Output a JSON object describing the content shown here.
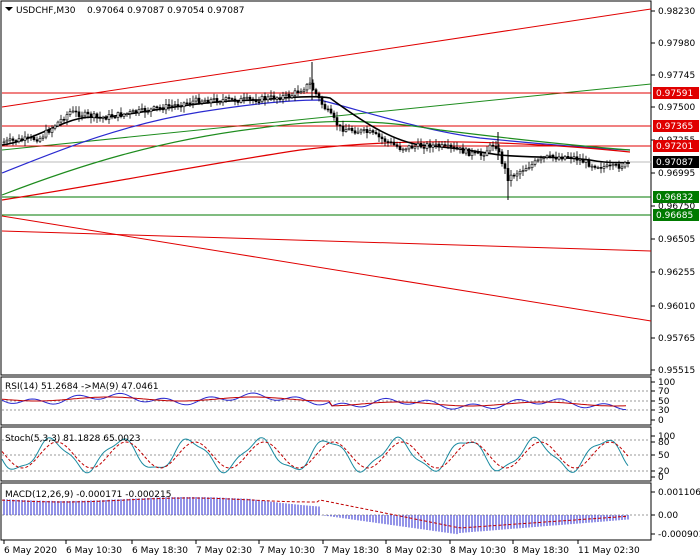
{
  "header": {
    "symbol_tf": "USDCHF,M30",
    "ohlc": "0.97064 0.97087 0.97054 0.97087"
  },
  "price_axis": {
    "ticks": [
      "0.98230",
      "0.97980",
      "0.97745",
      "0.97500",
      "0.97255",
      "0.96995",
      "0.96750",
      "0.96505",
      "0.96255",
      "0.96010",
      "0.95765",
      "0.95515"
    ],
    "levels": [
      {
        "value": "0.97591",
        "color": "#e00000"
      },
      {
        "value": "0.97365",
        "color": "#e00000"
      },
      {
        "value": "0.97201",
        "color": "#e00000"
      },
      {
        "value": "0.97087",
        "color": "#000000"
      },
      {
        "value": "0.96832",
        "color": "#007a00"
      },
      {
        "value": "0.96685",
        "color": "#007a00"
      }
    ]
  },
  "rsi": {
    "label": "RSI(14) 51.2684  ->MA(9) 47.0461",
    "ticks": [
      "100",
      "70",
      "50",
      "30",
      "0"
    ]
  },
  "stoch": {
    "label": "Stoch(5,3,3) 81.1828 65.0023",
    "ticks": [
      "100",
      "80",
      "50",
      "20",
      "0"
    ]
  },
  "macd": {
    "label": "MACD(12,26,9) -0.000171 -0.000215",
    "ticks": [
      "0.001106",
      "0.00",
      "-0.000901"
    ]
  },
  "time_axis": {
    "labels": [
      "6 May 2020",
      "6 May 10:30",
      "6 May 18:30",
      "7 May 02:30",
      "7 May 10:30",
      "7 May 18:30",
      "8 May 02:30",
      "8 May 10:30",
      "8 May 18:30",
      "11 May 02:30"
    ]
  }
}
